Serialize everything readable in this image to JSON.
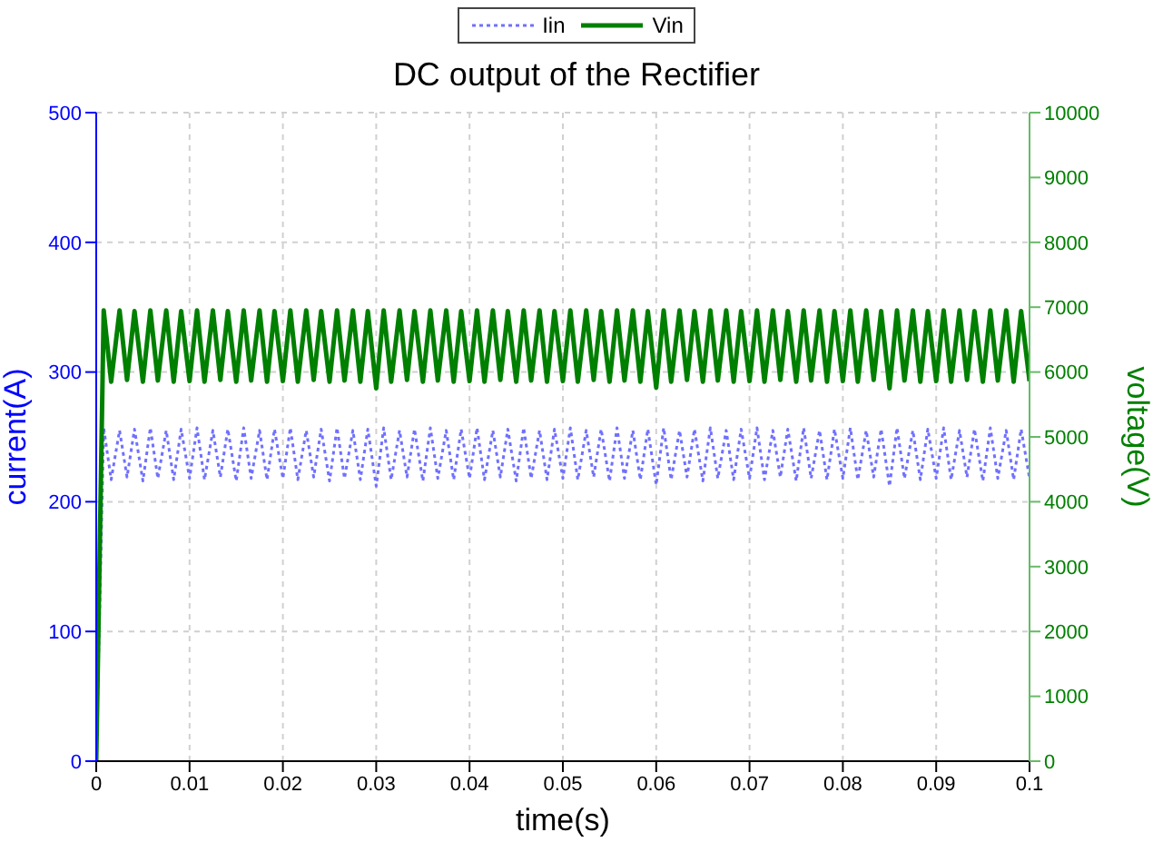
{
  "chart_data": {
    "type": "line",
    "title": "DC output of the Rectifier",
    "xlabel": "time(s)",
    "ylabel": "current(A)",
    "y2label": "voltage(V)",
    "legend": "top",
    "grid": true,
    "x": [
      0,
      0.0008,
      0.0016,
      0.0025,
      0.0033,
      0.0041,
      0.005,
      0.0058,
      0.0066,
      0.0075,
      0.0083,
      0.0091,
      0.01,
      0.0108,
      0.0116,
      0.0125,
      0.0133,
      0.0141,
      0.015,
      0.0158,
      0.0166,
      0.0175,
      0.0183,
      0.0191,
      0.02,
      0.0208,
      0.0216,
      0.0225,
      0.0233,
      0.0241,
      0.025,
      0.0258,
      0.0266,
      0.0275,
      0.0283,
      0.0291,
      0.03,
      0.0308,
      0.0316,
      0.0325,
      0.0333,
      0.0341,
      0.035,
      0.0358,
      0.0366,
      0.0375,
      0.0383,
      0.0391,
      0.04,
      0.0408,
      0.0416,
      0.0425,
      0.0433,
      0.0441,
      0.045,
      0.0458,
      0.0466,
      0.0475,
      0.0483,
      0.0491,
      0.05,
      0.0508,
      0.0516,
      0.0525,
      0.0533,
      0.0541,
      0.055,
      0.0558,
      0.0566,
      0.0575,
      0.0583,
      0.0591,
      0.06,
      0.0608,
      0.0616,
      0.0625,
      0.0633,
      0.0641,
      0.065,
      0.0658,
      0.0666,
      0.0675,
      0.0683,
      0.0691,
      0.07,
      0.0708,
      0.0716,
      0.0725,
      0.0733,
      0.0741,
      0.075,
      0.0758,
      0.0766,
      0.0775,
      0.0783,
      0.0791,
      0.08,
      0.0808,
      0.0816,
      0.0825,
      0.0833,
      0.0841,
      0.085,
      0.0858,
      0.0866,
      0.0875,
      0.0883,
      0.0891,
      0.09,
      0.0908,
      0.0916,
      0.0925,
      0.0933,
      0.0941,
      0.095,
      0.0958,
      0.0966,
      0.0975,
      0.0983,
      0.0991,
      0.1
    ],
    "xlim": [
      0,
      0.1
    ],
    "xticks": [
      0,
      0.01,
      0.02,
      0.03,
      0.04,
      0.05,
      0.06,
      0.07,
      0.08,
      0.09,
      0.1
    ],
    "ylim": [
      0,
      500
    ],
    "yticks": [
      0,
      100,
      200,
      300,
      400,
      500
    ],
    "y2lim": [
      0,
      10000
    ],
    "y2ticks": [
      0,
      1000,
      2000,
      3000,
      4000,
      5000,
      6000,
      7000,
      8000,
      9000,
      10000
    ],
    "series": [
      {
        "name": "Iin",
        "color": "#7070ff",
        "line_style": "dotted",
        "values": [
          0,
          257,
          217,
          255,
          219,
          256,
          216,
          257,
          218,
          255,
          217,
          256,
          218,
          257,
          217,
          255,
          219,
          256,
          216,
          257,
          218,
          255,
          217,
          256,
          218,
          257,
          217,
          255,
          219,
          256,
          216,
          257,
          218,
          255,
          217,
          256,
          212,
          257,
          217,
          255,
          219,
          256,
          216,
          257,
          218,
          255,
          217,
          256,
          218,
          257,
          217,
          255,
          219,
          256,
          216,
          257,
          218,
          255,
          217,
          256,
          218,
          257,
          217,
          255,
          219,
          256,
          216,
          257,
          218,
          255,
          217,
          256,
          213,
          257,
          217,
          255,
          219,
          256,
          216,
          257,
          218,
          255,
          217,
          256,
          218,
          257,
          217,
          255,
          219,
          256,
          216,
          257,
          218,
          255,
          217,
          256,
          218,
          257,
          217,
          255,
          219,
          256,
          212,
          257,
          218,
          255,
          217,
          256,
          218,
          257,
          217,
          255,
          219,
          256,
          216,
          257,
          218,
          255,
          217,
          256,
          218
        ]
      },
      {
        "name": "Vin",
        "color": "#008000",
        "line_style": "solid",
        "axis": "y2",
        "values": [
          0,
          6950,
          5850,
          6950,
          5880,
          6940,
          5850,
          6950,
          5870,
          6950,
          5850,
          6940,
          5860,
          6950,
          5850,
          6950,
          5880,
          6940,
          5850,
          6950,
          5870,
          6950,
          5850,
          6940,
          5860,
          6950,
          5850,
          6950,
          5880,
          6940,
          5850,
          6950,
          5870,
          6950,
          5850,
          6940,
          5750,
          6950,
          5850,
          6950,
          5880,
          6940,
          5850,
          6950,
          5870,
          6950,
          5850,
          6940,
          5860,
          6950,
          5850,
          6950,
          5880,
          6940,
          5850,
          6950,
          5870,
          6950,
          5850,
          6940,
          5860,
          6950,
          5850,
          6950,
          5880,
          6940,
          5850,
          6950,
          5870,
          6950,
          5850,
          6940,
          5760,
          6950,
          5850,
          6950,
          5880,
          6940,
          5850,
          6950,
          5870,
          6950,
          5850,
          6940,
          5860,
          6950,
          5850,
          6950,
          5880,
          6940,
          5850,
          6950,
          5870,
          6950,
          5850,
          6940,
          5860,
          6950,
          5850,
          6950,
          5880,
          6940,
          5750,
          6950,
          5870,
          6950,
          5850,
          6940,
          5860,
          6950,
          5850,
          6950,
          5880,
          6940,
          5850,
          6950,
          5870,
          6950,
          5850,
          6940,
          5860
        ]
      }
    ]
  }
}
